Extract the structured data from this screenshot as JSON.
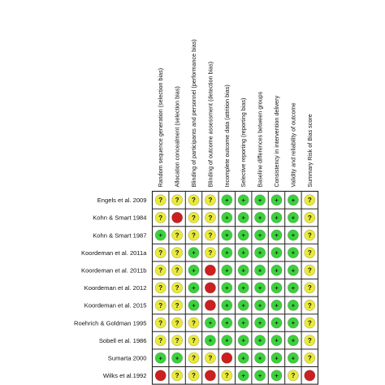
{
  "chart_data": {
    "type": "table",
    "columns": [
      "Random sequence generation (selection bias)",
      "Allocation concealment (selection bias)",
      "Blinding of participants and personnel (performance bias)",
      "Blinding of outcome assessment (detection bias)",
      "Incomplete outcome data (attrition bias)",
      "Selective reporting (reporting bias)",
      "Baseline differences between groups",
      "Consistency in intervention delivery",
      "Validity and reliability of outcome",
      "Summary Risk of Bias score"
    ],
    "rows": [
      {
        "study": "Engels et al. 2009",
        "ratings": [
          "unclear",
          "unclear",
          "unclear",
          "unclear",
          "low",
          "low",
          "low",
          "low",
          "low",
          "unclear"
        ]
      },
      {
        "study": "Kohn & Smart 1984",
        "ratings": [
          "unclear",
          "high",
          "unclear",
          "unclear",
          "low",
          "low",
          "low",
          "low",
          "low",
          "unclear"
        ]
      },
      {
        "study": "Kohn & Smart 1987",
        "ratings": [
          "low",
          "unclear",
          "unclear",
          "unclear",
          "low",
          "low",
          "low",
          "low",
          "low",
          "unclear"
        ]
      },
      {
        "study": "Koordeman et al. 2011a",
        "ratings": [
          "unclear",
          "unclear",
          "low",
          "unclear",
          "low",
          "low",
          "low",
          "low",
          "low",
          "unclear"
        ]
      },
      {
        "study": "Koordeman et al. 2011b",
        "ratings": [
          "unclear",
          "unclear",
          "low",
          "high",
          "low",
          "low",
          "low",
          "low",
          "low",
          "unclear"
        ]
      },
      {
        "study": "Koordeman et al. 2012",
        "ratings": [
          "unclear",
          "unclear",
          "low",
          "high",
          "low",
          "low",
          "low",
          "low",
          "low",
          "unclear"
        ]
      },
      {
        "study": "Koordeman et al. 2015",
        "ratings": [
          "unclear",
          "unclear",
          "low",
          "high",
          "low",
          "low",
          "low",
          "low",
          "low",
          "unclear"
        ]
      },
      {
        "study": "Roehrich & Goldman 1995",
        "ratings": [
          "unclear",
          "unclear",
          "unclear",
          "low",
          "low",
          "low",
          "low",
          "low",
          "low",
          "unclear"
        ]
      },
      {
        "study": "Sobell et al. 1986",
        "ratings": [
          "unclear",
          "unclear",
          "unclear",
          "low",
          "low",
          "low",
          "low",
          "low",
          "low",
          "unclear"
        ]
      },
      {
        "study": "Sumarta 2000",
        "ratings": [
          "low",
          "low",
          "unclear",
          "unclear",
          "high",
          "low",
          "low",
          "low",
          "low",
          "unclear"
        ]
      },
      {
        "study": "Wilks et al.1992",
        "ratings": [
          "high",
          "unclear",
          "unclear",
          "high",
          "unclear",
          "low",
          "low",
          "low",
          "unclear",
          "high"
        ]
      }
    ],
    "rating_symbols": {
      "low": "+",
      "unclear": "?",
      "high": ""
    },
    "colors": {
      "low": "#3cd13c",
      "unclear": "#e9ea3a",
      "high": "#cc1f1f",
      "grid": "#222222"
    }
  }
}
